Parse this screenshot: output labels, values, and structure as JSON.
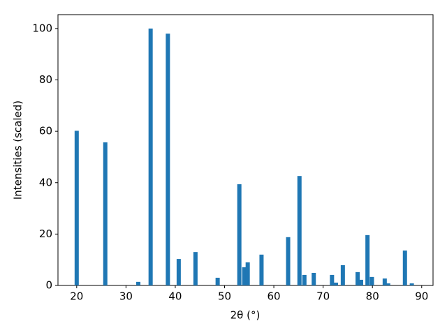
{
  "chart_data": {
    "type": "bar",
    "x_label": "2θ (°)",
    "y_label": "Intensities (scaled)",
    "x": [
      20.0,
      25.8,
      32.5,
      35.0,
      38.5,
      40.7,
      44.1,
      48.6,
      53.0,
      54.0,
      54.7,
      57.5,
      62.9,
      65.2,
      66.2,
      68.1,
      71.8,
      72.6,
      74.0,
      77.0,
      77.7,
      79.0,
      79.9,
      82.5,
      83.2,
      86.6,
      88.0
    ],
    "values": [
      60.2,
      55.7,
      1.4,
      100,
      98,
      10.3,
      13,
      3.0,
      39.4,
      7.1,
      9.0,
      12,
      18.8,
      42.6,
      4.1,
      4.9,
      4.1,
      1.1,
      7.9,
      5.2,
      2.2,
      19.6,
      3.3,
      2.7,
      0.8,
      13.6,
      0.8
    ],
    "color": "#1f77b4",
    "xlim": [
      16.2,
      92.3
    ],
    "ylim": [
      0,
      105.4
    ],
    "xticks": [
      20,
      30,
      40,
      50,
      60,
      70,
      80,
      90
    ],
    "yticks": [
      0,
      20,
      40,
      60,
      80,
      100
    ]
  }
}
